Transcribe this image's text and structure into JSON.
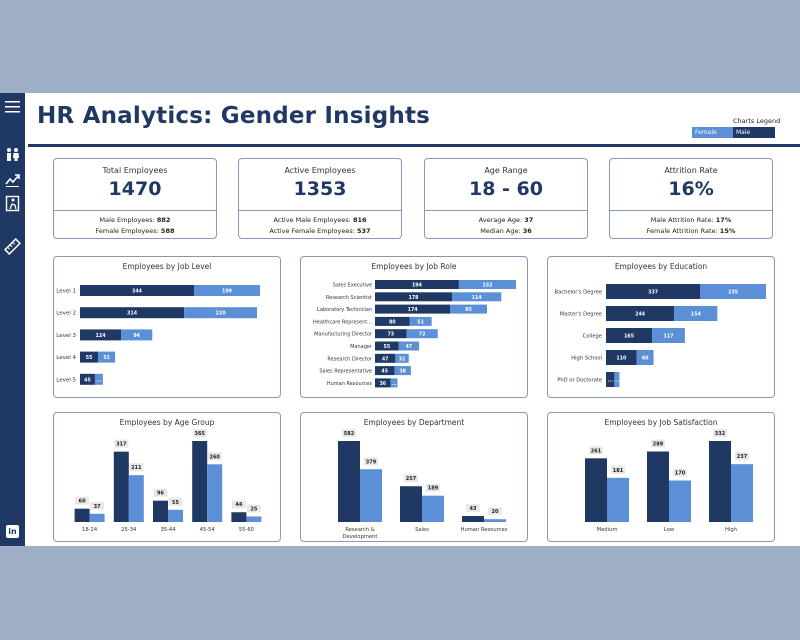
{
  "header": {
    "title": "HR Analytics: Gender Insights",
    "legend_title": "Charts Legend",
    "legend_female": "Female",
    "legend_male": "Male"
  },
  "colors": {
    "male": "#1f3864",
    "female": "#5b8fd6",
    "accent": "#1f3864"
  },
  "sidebar": {
    "icons": [
      "menu-icon",
      "people-icon",
      "trend-icon",
      "exit-icon",
      "ruler-icon",
      "linkedin-icon"
    ],
    "linkedin_text": "in"
  },
  "kpis": [
    {
      "label": "Total Employees",
      "value": "1470",
      "line1_label": "Male Employees:",
      "line1_value": "882",
      "line2_label": "Female Employees:",
      "line2_value": "588"
    },
    {
      "label": "Active Employees",
      "value": "1353",
      "line1_label": "Active Male Employees:",
      "line1_value": "816",
      "line2_label": "Active Female Employees:",
      "line2_value": "537"
    },
    {
      "label": "Age Range",
      "value": "18 - 60",
      "line1_label": "Average Age:",
      "line1_value": "37",
      "line2_label": "Median Age:",
      "line2_value": "36"
    },
    {
      "label": "Attrition Rate",
      "value": "16%",
      "line1_label": "Male Attrition Rate:",
      "line1_value": "17%",
      "line2_label": "Female Attrition Rate:",
      "line2_value": "15%"
    }
  ],
  "chart_data": [
    {
      "type": "bar",
      "orientation": "horizontal",
      "stacked": true,
      "title": "Employees by Job Level",
      "categories": [
        "Level 1",
        "Level 2",
        "Level 3",
        "Level 4",
        "Level 5"
      ],
      "series": [
        {
          "name": "Male",
          "values": [
            344,
            314,
            124,
            55,
            45
          ]
        },
        {
          "name": "Female",
          "values": [
            199,
            220,
            94,
            51,
            24
          ]
        }
      ],
      "hidden_labels": [
        [
          false,
          false,
          false,
          false,
          false
        ],
        [
          false,
          false,
          false,
          false,
          true
        ]
      ]
    },
    {
      "type": "bar",
      "orientation": "horizontal",
      "stacked": true,
      "title": "Employees by Job Role",
      "categories": [
        "Sales Executive",
        "Research Scientist",
        "Laboratory Technician",
        "Healthcare Represent...",
        "Manufacturing Director",
        "Manager",
        "Research Director",
        "Sales Representative",
        "Human Resources"
      ],
      "series": [
        {
          "name": "Male",
          "values": [
            194,
            178,
            174,
            80,
            73,
            55,
            47,
            45,
            36
          ]
        },
        {
          "name": "Female",
          "values": [
            132,
            114,
            85,
            51,
            72,
            47,
            31,
            38,
            16
          ]
        }
      ],
      "hidden_labels": [
        [
          false,
          false,
          false,
          false,
          false,
          false,
          false,
          false,
          false
        ],
        [
          false,
          false,
          false,
          false,
          false,
          false,
          false,
          false,
          true
        ]
      ]
    },
    {
      "type": "bar",
      "orientation": "horizontal",
      "stacked": true,
      "title": "Employees by Education",
      "categories": [
        "Bachelor's Degree",
        "Master's Degree",
        "College",
        "High School",
        "PhD or Doctorate"
      ],
      "series": [
        {
          "name": "Male",
          "values": [
            337,
            244,
            165,
            110,
            30
          ]
        },
        {
          "name": "Female",
          "values": [
            235,
            154,
            117,
            60,
            18
          ]
        }
      ],
      "hidden_labels": [
        [
          false,
          false,
          false,
          false,
          true
        ],
        [
          false,
          false,
          false,
          false,
          true
        ]
      ]
    },
    {
      "type": "bar",
      "orientation": "vertical",
      "stacked": false,
      "title": "Employees by Age Group",
      "categories": [
        "18-24",
        "25-34",
        "35-44",
        "45-54",
        "55-60"
      ],
      "series": [
        {
          "name": "Male",
          "values": [
            60,
            317,
            96,
            365,
            44
          ]
        },
        {
          "name": "Female",
          "values": [
            37,
            211,
            55,
            260,
            25
          ]
        }
      ]
    },
    {
      "type": "bar",
      "orientation": "vertical",
      "stacked": false,
      "title": "Employees by Department",
      "categories": [
        "Research & Development",
        "Sales",
        "Human Resources"
      ],
      "category_lines": [
        [
          "Research &",
          "Development"
        ],
        [
          "Sales"
        ],
        [
          "Human Resources"
        ]
      ],
      "series": [
        {
          "name": "Male",
          "values": [
            582,
            257,
            43
          ]
        },
        {
          "name": "Female",
          "values": [
            379,
            189,
            20
          ]
        }
      ]
    },
    {
      "type": "bar",
      "orientation": "vertical",
      "stacked": false,
      "title": "Employees by Job Satisfaction",
      "categories": [
        "Medium",
        "Low",
        "High"
      ],
      "series": [
        {
          "name": "Male",
          "values": [
            261,
            289,
            332
          ]
        },
        {
          "name": "Female",
          "values": [
            181,
            170,
            237
          ]
        }
      ]
    }
  ]
}
